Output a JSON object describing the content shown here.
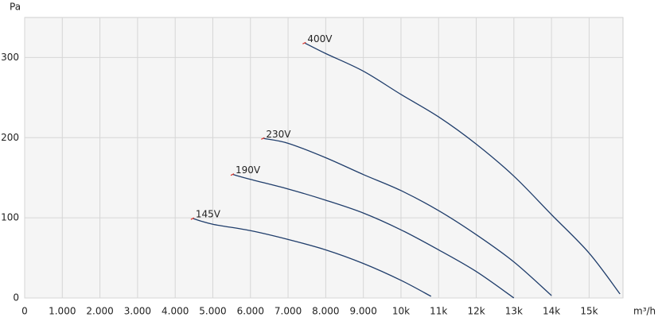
{
  "chart_data": {
    "type": "line",
    "y_label": "Pa",
    "x_label": "m³/h",
    "xlim": [
      0,
      15900
    ],
    "ylim": [
      0,
      350
    ],
    "xticks": [
      0,
      {
        "value": 1000,
        "label": "1.000"
      },
      {
        "value": 2000,
        "label": "2.000"
      },
      {
        "value": 3000,
        "label": "3.000"
      },
      {
        "value": 4000,
        "label": "4.000"
      },
      {
        "value": 5000,
        "label": "5.000"
      },
      {
        "value": 6000,
        "label": "6.000"
      },
      {
        "value": 7000,
        "label": "7.000"
      },
      {
        "value": 8000,
        "label": "8.000"
      },
      {
        "value": 9000,
        "label": "9.000"
      },
      {
        "value": 10000,
        "label": "10k"
      },
      {
        "value": 11000,
        "label": "11k"
      },
      {
        "value": 12000,
        "label": "12k"
      },
      {
        "value": 13000,
        "label": "13k"
      },
      {
        "value": 14000,
        "label": "14k"
      },
      {
        "value": 15000,
        "label": "15k"
      }
    ],
    "yticks": [
      0,
      100,
      200,
      300
    ],
    "grid": true,
    "series": [
      {
        "name": "400V",
        "color": "#1f3d6b",
        "x": [
          7450,
          8000,
          9000,
          10000,
          11000,
          12000,
          13000,
          14000,
          15000,
          15820
        ],
        "values": [
          318,
          305,
          283,
          254,
          226,
          192,
          152,
          104,
          56,
          5
        ]
      },
      {
        "name": "230V",
        "color": "#1f3d6b",
        "x": [
          6350,
          7000,
          8000,
          9000,
          10000,
          11000,
          12000,
          13000,
          14000
        ],
        "values": [
          199,
          193,
          175,
          154,
          134,
          109,
          79,
          45,
          3
        ]
      },
      {
        "name": "190V",
        "color": "#1f3d6b",
        "x": [
          5540,
          6000,
          7000,
          8000,
          9000,
          10000,
          11000,
          12000,
          13000
        ],
        "values": [
          154,
          148,
          136,
          122,
          106,
          85,
          60,
          33,
          0
        ]
      },
      {
        "name": "145V",
        "color": "#1f3d6b",
        "x": [
          4480,
          5000,
          6000,
          7000,
          8000,
          9000,
          10000,
          10800
        ],
        "values": [
          99,
          92,
          84,
          73,
          60,
          43,
          22,
          2
        ]
      }
    ]
  }
}
